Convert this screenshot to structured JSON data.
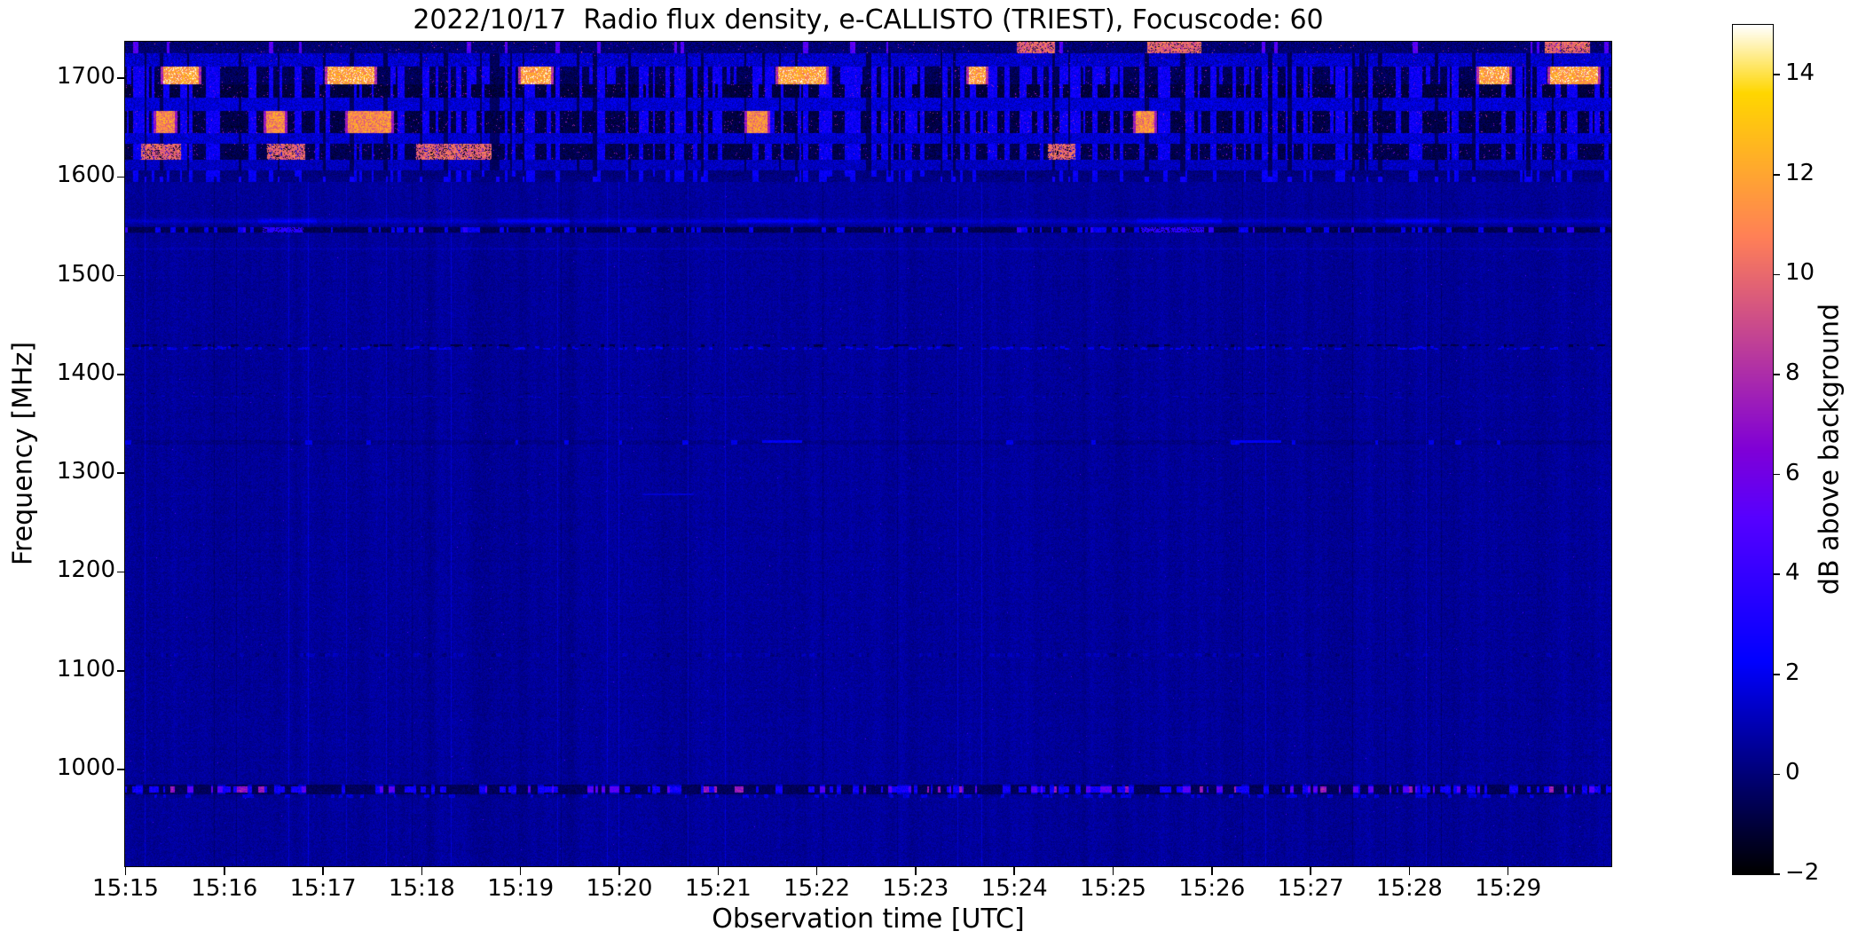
{
  "title": "2022/10/17  Radio flux density, e-CALLISTO (TRIEST), Focuscode: 60",
  "x_axis": {
    "label": "Observation time [UTC]",
    "ticks": [
      "15:15",
      "15:16",
      "15:17",
      "15:18",
      "15:19",
      "15:20",
      "15:21",
      "15:22",
      "15:23",
      "15:24",
      "15:25",
      "15:26",
      "15:27",
      "15:28",
      "15:29"
    ]
  },
  "y_axis": {
    "label": "Frequency [MHz]",
    "ticks": [
      "1700",
      "1600",
      "1500",
      "1400",
      "1300",
      "1200",
      "1100",
      "1000"
    ]
  },
  "colorbar": {
    "label": "dB above background",
    "ticks": [
      "14",
      "12",
      "10",
      "8",
      "6",
      "4",
      "2",
      "0",
      "−2"
    ]
  },
  "chart_data": {
    "type": "heatmap",
    "title": "2022/10/17  Radio flux density, e-CALLISTO (TRIEST), Focuscode: 60",
    "xlabel": "Observation time [UTC]",
    "ylabel": "Frequency [MHz]",
    "x_range_utc": [
      "15:15:00",
      "15:30:00"
    ],
    "x_tick_labels": [
      "15:15",
      "15:16",
      "15:17",
      "15:18",
      "15:19",
      "15:20",
      "15:21",
      "15:22",
      "15:23",
      "15:24",
      "15:25",
      "15:26",
      "15:27",
      "15:28",
      "15:29"
    ],
    "y_range_mhz": [
      902,
      1737
    ],
    "y_tick_labels": [
      1700,
      1600,
      1500,
      1400,
      1300,
      1200,
      1100,
      1000
    ],
    "value_scale": {
      "label": "dB above background",
      "range_db": [
        -2,
        15
      ],
      "tick_values": [
        14,
        12,
        10,
        8,
        6,
        4,
        2,
        0,
        -2
      ],
      "colormap": "gnuplot2 (black - blue - violet - magenta - pink - orange - yellow - white)"
    },
    "background_level_db": 0.8,
    "legend_position": "right colorbar",
    "grid": false,
    "features": [
      {
        "freq_mhz": [
          1600,
          1737
        ],
        "time": "all",
        "description": "Strong broadband RFI block: alternating dark striped bands and blue speckle bands with saturated yellow/orange bursts (notably near 15:15.5, 15:17-15:17.5, 15:19.3, 15:21.5-15:22, 15:28.8, 15:29.5)",
        "peak_db": 15
      },
      {
        "freq_mhz": [
          1545,
          1556
        ],
        "time": "all",
        "description": "Narrow RFI pair: fuzzy bright-blue line above a dark dashed line with bright blue segments near 15:16.5 and 15:25.5",
        "peak_db": 4
      },
      {
        "freq_mhz": 1428,
        "time": "intermittent",
        "description": "Faint speckled dash line",
        "peak_db": 2.5
      },
      {
        "freq_mhz": 1380,
        "time": "intermittent",
        "description": "Very faint speckled dash line",
        "peak_db": 2
      },
      {
        "freq_mhz": 1330,
        "time": "intermittent",
        "description": "Faint dark line with sparse bright blue dashes near 15:21.5 and 15:26.5",
        "peak_db": 2.5
      },
      {
        "freq_mhz": 1080,
        "time": "intermittent",
        "description": "Very faint speckle line",
        "peak_db": 1.5
      },
      {
        "freq_mhz": 980,
        "time": "all",
        "description": "Dense intermittent RFI line: blue, violet and pink/magenta dashes on dark background",
        "peak_db": 8.5
      }
    ]
  }
}
